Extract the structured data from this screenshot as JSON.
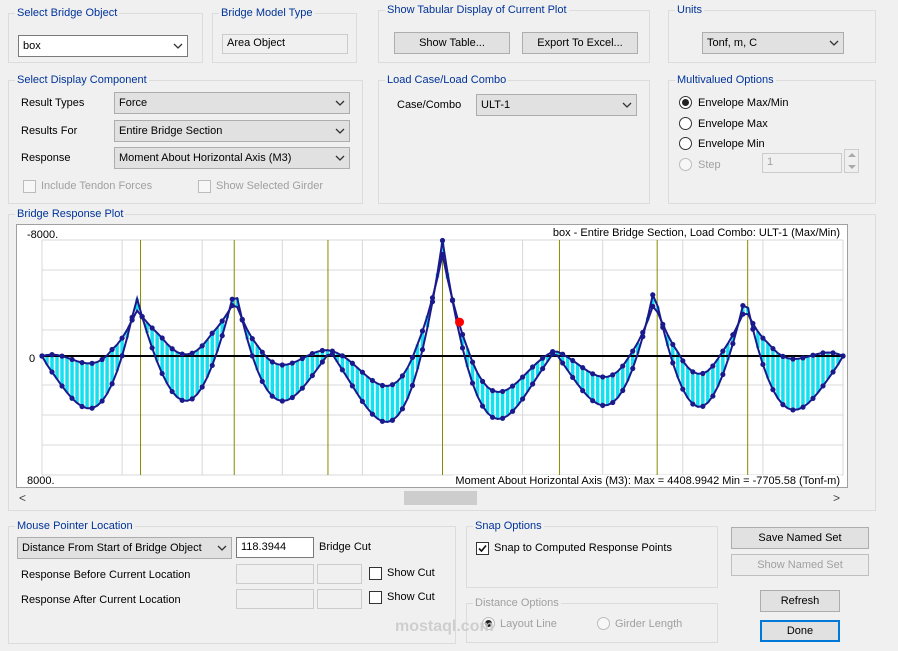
{
  "bridge_object": {
    "label": "Select Bridge Object",
    "value": "box"
  },
  "model_type": {
    "label": "Bridge Model Type",
    "value": "Area Object"
  },
  "tabular": {
    "label": "Show Tabular Display of Current Plot",
    "show_table": "Show Table...",
    "export_excel": "Export To Excel..."
  },
  "units": {
    "label": "Units",
    "value": "Tonf, m, C"
  },
  "display_component": {
    "label": "Select Display Component",
    "result_types_label": "Result Types",
    "result_types_value": "Force",
    "results_for_label": "Results For",
    "results_for_value": "Entire Bridge Section",
    "response_label": "Response",
    "response_value": "Moment About Horizontal Axis  (M3)",
    "include_tendon": "Include Tendon Forces",
    "show_selected_girder": "Show Selected Girder"
  },
  "load_case": {
    "label": "Load Case/Load Combo",
    "case_label": "Case/Combo",
    "case_value": "ULT-1"
  },
  "multivalued": {
    "label": "Multivalued Options",
    "opt1": "Envelope Max/Min",
    "opt2": "Envelope Max",
    "opt3": "Envelope Min",
    "step_label": "Step",
    "step_value": "1"
  },
  "plot": {
    "label": "Bridge Response Plot",
    "header": "box - Entire Bridge Section,  Load Combo: ULT-1 (Max/Min)",
    "footer": "Moment About Horizontal Axis  (M3):  Max = 4408.9942    Min = -7705.58   (Tonf-m)",
    "top_label": "-8000.",
    "zero_label": "0",
    "bottom_label": "8000.",
    "scroll_left": "<",
    "scroll_right": ">"
  },
  "chart_data": {
    "type": "area",
    "title": "box - Entire Bridge Section,  Load Combo: ULT-1 (Max/Min)",
    "ylim": [
      8000,
      -8000
    ],
    "y_orientation": "negative up",
    "max": 4408.9942,
    "min": -7705.58,
    "support_count": 8,
    "series": [
      {
        "name": "Envelope Max"
      },
      {
        "name": "Envelope Min"
      }
    ],
    "colors": {
      "envelope": "#1a1a8c",
      "fill": "#16e0f0",
      "supports": "#8a8a00",
      "cursor": "#ff0000"
    }
  },
  "mouse": {
    "label": "Mouse Pointer Location",
    "mode": "Distance From Start of Bridge Object",
    "value": "118.3944",
    "cut_label": "Bridge Cut",
    "before_label": "Response Before Current Location",
    "after_label": "Response After Current Location",
    "show_cut": "Show Cut"
  },
  "snap": {
    "label": "Snap Options",
    "snap_text": "Snap to Computed Response Points"
  },
  "distance": {
    "label": "Distance Options",
    "layout_line": "Layout Line",
    "girder_length": "Girder Length"
  },
  "buttons": {
    "save": "Save Named Set",
    "show": "Show Named Set",
    "refresh": "Refresh",
    "done": "Done"
  },
  "watermark": "mostaql.com"
}
